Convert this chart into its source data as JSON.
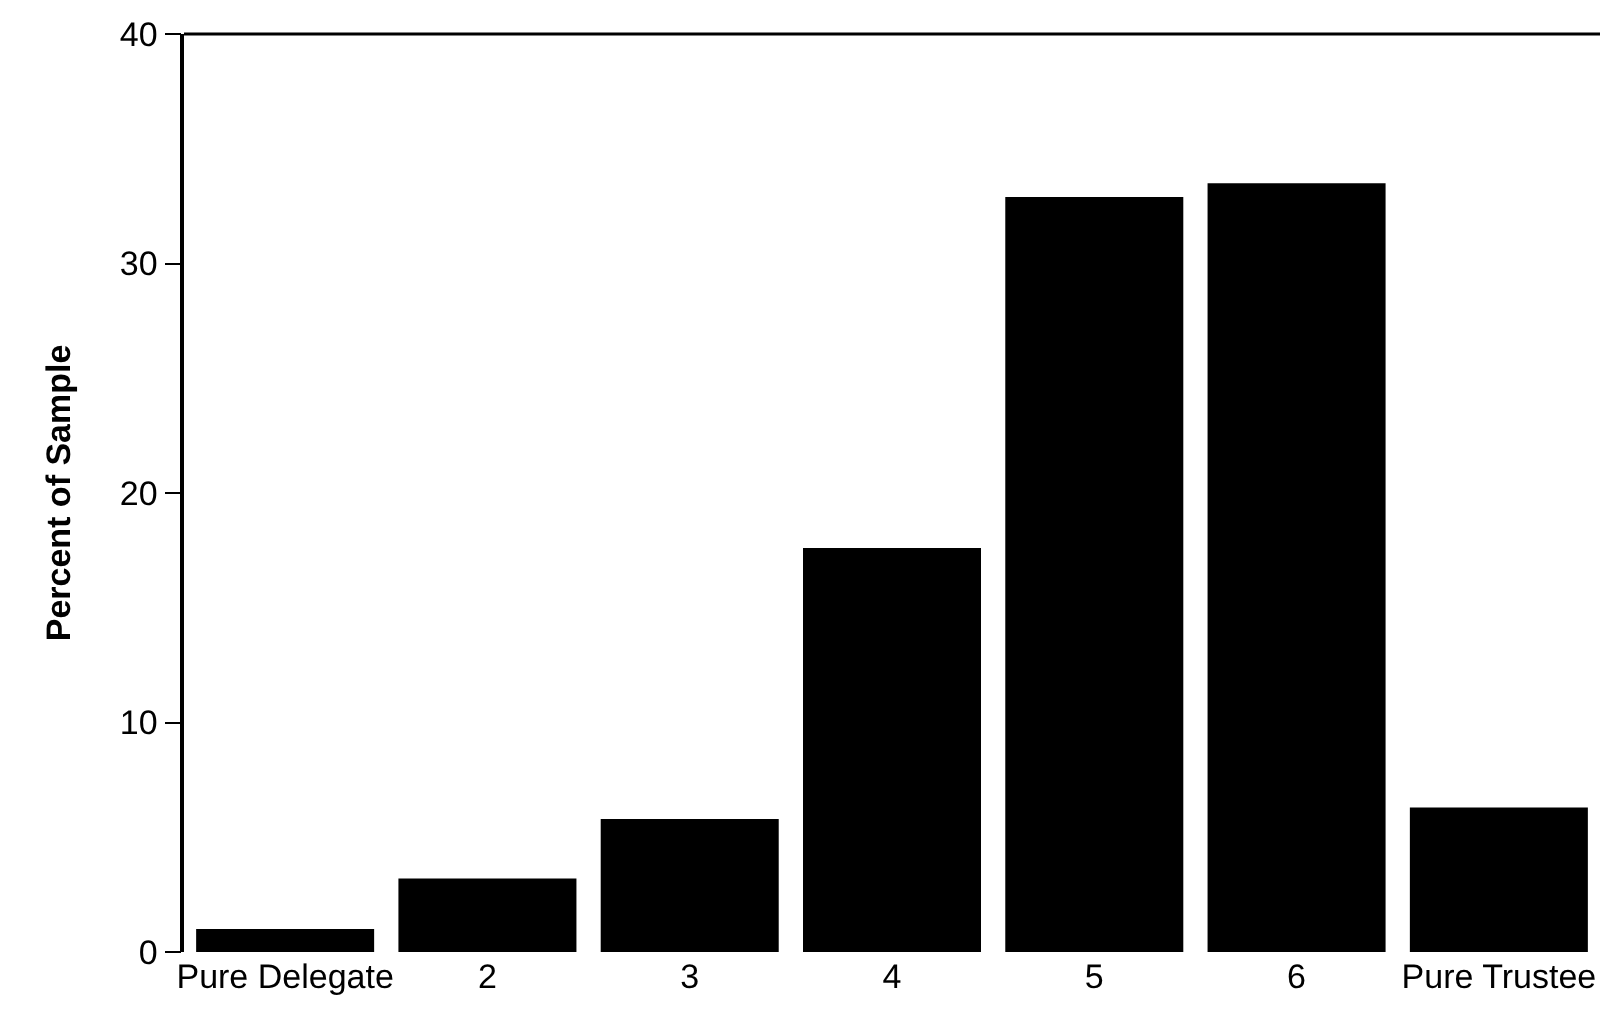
{
  "chart_data": {
    "type": "bar",
    "ylabel": "Percent of Sample",
    "categories": [
      "Pure Delegate",
      "2",
      "3",
      "4",
      "5",
      "6",
      "Pure Trustee"
    ],
    "values": [
      1.0,
      3.2,
      5.8,
      17.6,
      32.9,
      33.5,
      6.3
    ],
    "color": "#000000",
    "ylim": [
      0,
      40
    ],
    "yticks": [
      0,
      10,
      20,
      30,
      40
    ]
  }
}
